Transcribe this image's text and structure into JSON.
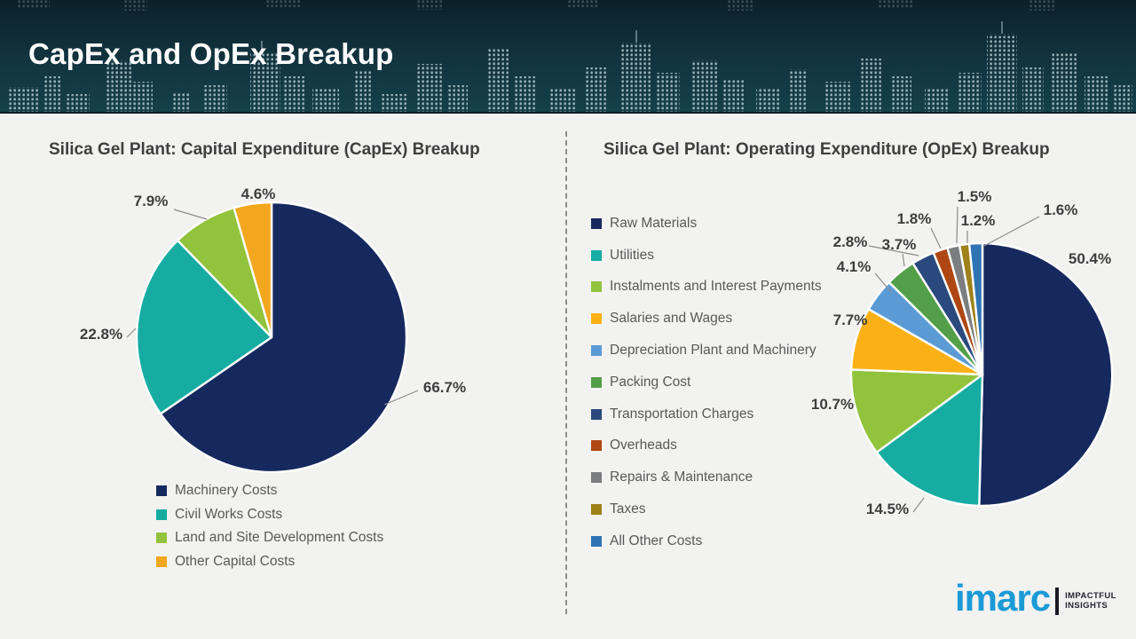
{
  "header": {
    "title": "CapEx and OpEx Breakup"
  },
  "footer": {
    "logo_text": "imarc",
    "tagline_line1": "IMPACTFUL",
    "tagline_line2": "INSIGHTS",
    "logo_color": "#1C9AD6"
  },
  "divider_style": "vertical dashed gray line between panels",
  "chart_data": [
    {
      "type": "pie",
      "title": "Silica Gel Plant: Capital Expenditure (CapEx) Breakup",
      "labels": [
        "Machinery Costs",
        "Civil Works Costs",
        "Land and Site Development Costs",
        "Other Capital Costs"
      ],
      "values": [
        66.7,
        22.8,
        7.9,
        4.6
      ],
      "value_labels": [
        "66.7%",
        "22.8%",
        "7.9%",
        "4.6%"
      ],
      "colors": [
        "#16295E",
        "#16ACA2",
        "#92C33D",
        "#F2A71F"
      ],
      "unit": "percent",
      "start_angle_deg": 0,
      "direction": "clockwise",
      "legend_position": "bottom"
    },
    {
      "type": "pie",
      "title": "Silica Gel Plant: Operating Expenditure (OpEx) Breakup",
      "labels": [
        "Raw Materials",
        "Utilities",
        "Instalments and Interest Payments",
        "Salaries and Wages",
        "Depreciation Plant and Machinery",
        "Packing Cost",
        "Transportation Charges",
        "Overheads",
        "Repairs & Maintenance",
        "Taxes",
        "All Other Costs"
      ],
      "values": [
        50.4,
        14.5,
        10.7,
        7.7,
        4.1,
        3.7,
        2.8,
        1.8,
        1.5,
        1.2,
        1.6
      ],
      "value_labels": [
        "50.4%",
        "14.5%",
        "10.7%",
        "7.7%",
        "4.1%",
        "3.7%",
        "2.8%",
        "1.8%",
        "1.5%",
        "1.2%",
        "1.6%"
      ],
      "colors": [
        "#16295E",
        "#16ACA2",
        "#92C33D",
        "#FBB116",
        "#5B9BD5",
        "#539F49",
        "#2A4A7E",
        "#AE4713",
        "#7B7D7F",
        "#9E8119",
        "#2E74B5"
      ],
      "unit": "percent",
      "start_angle_deg": 0,
      "direction": "clockwise",
      "legend_position": "left"
    }
  ]
}
